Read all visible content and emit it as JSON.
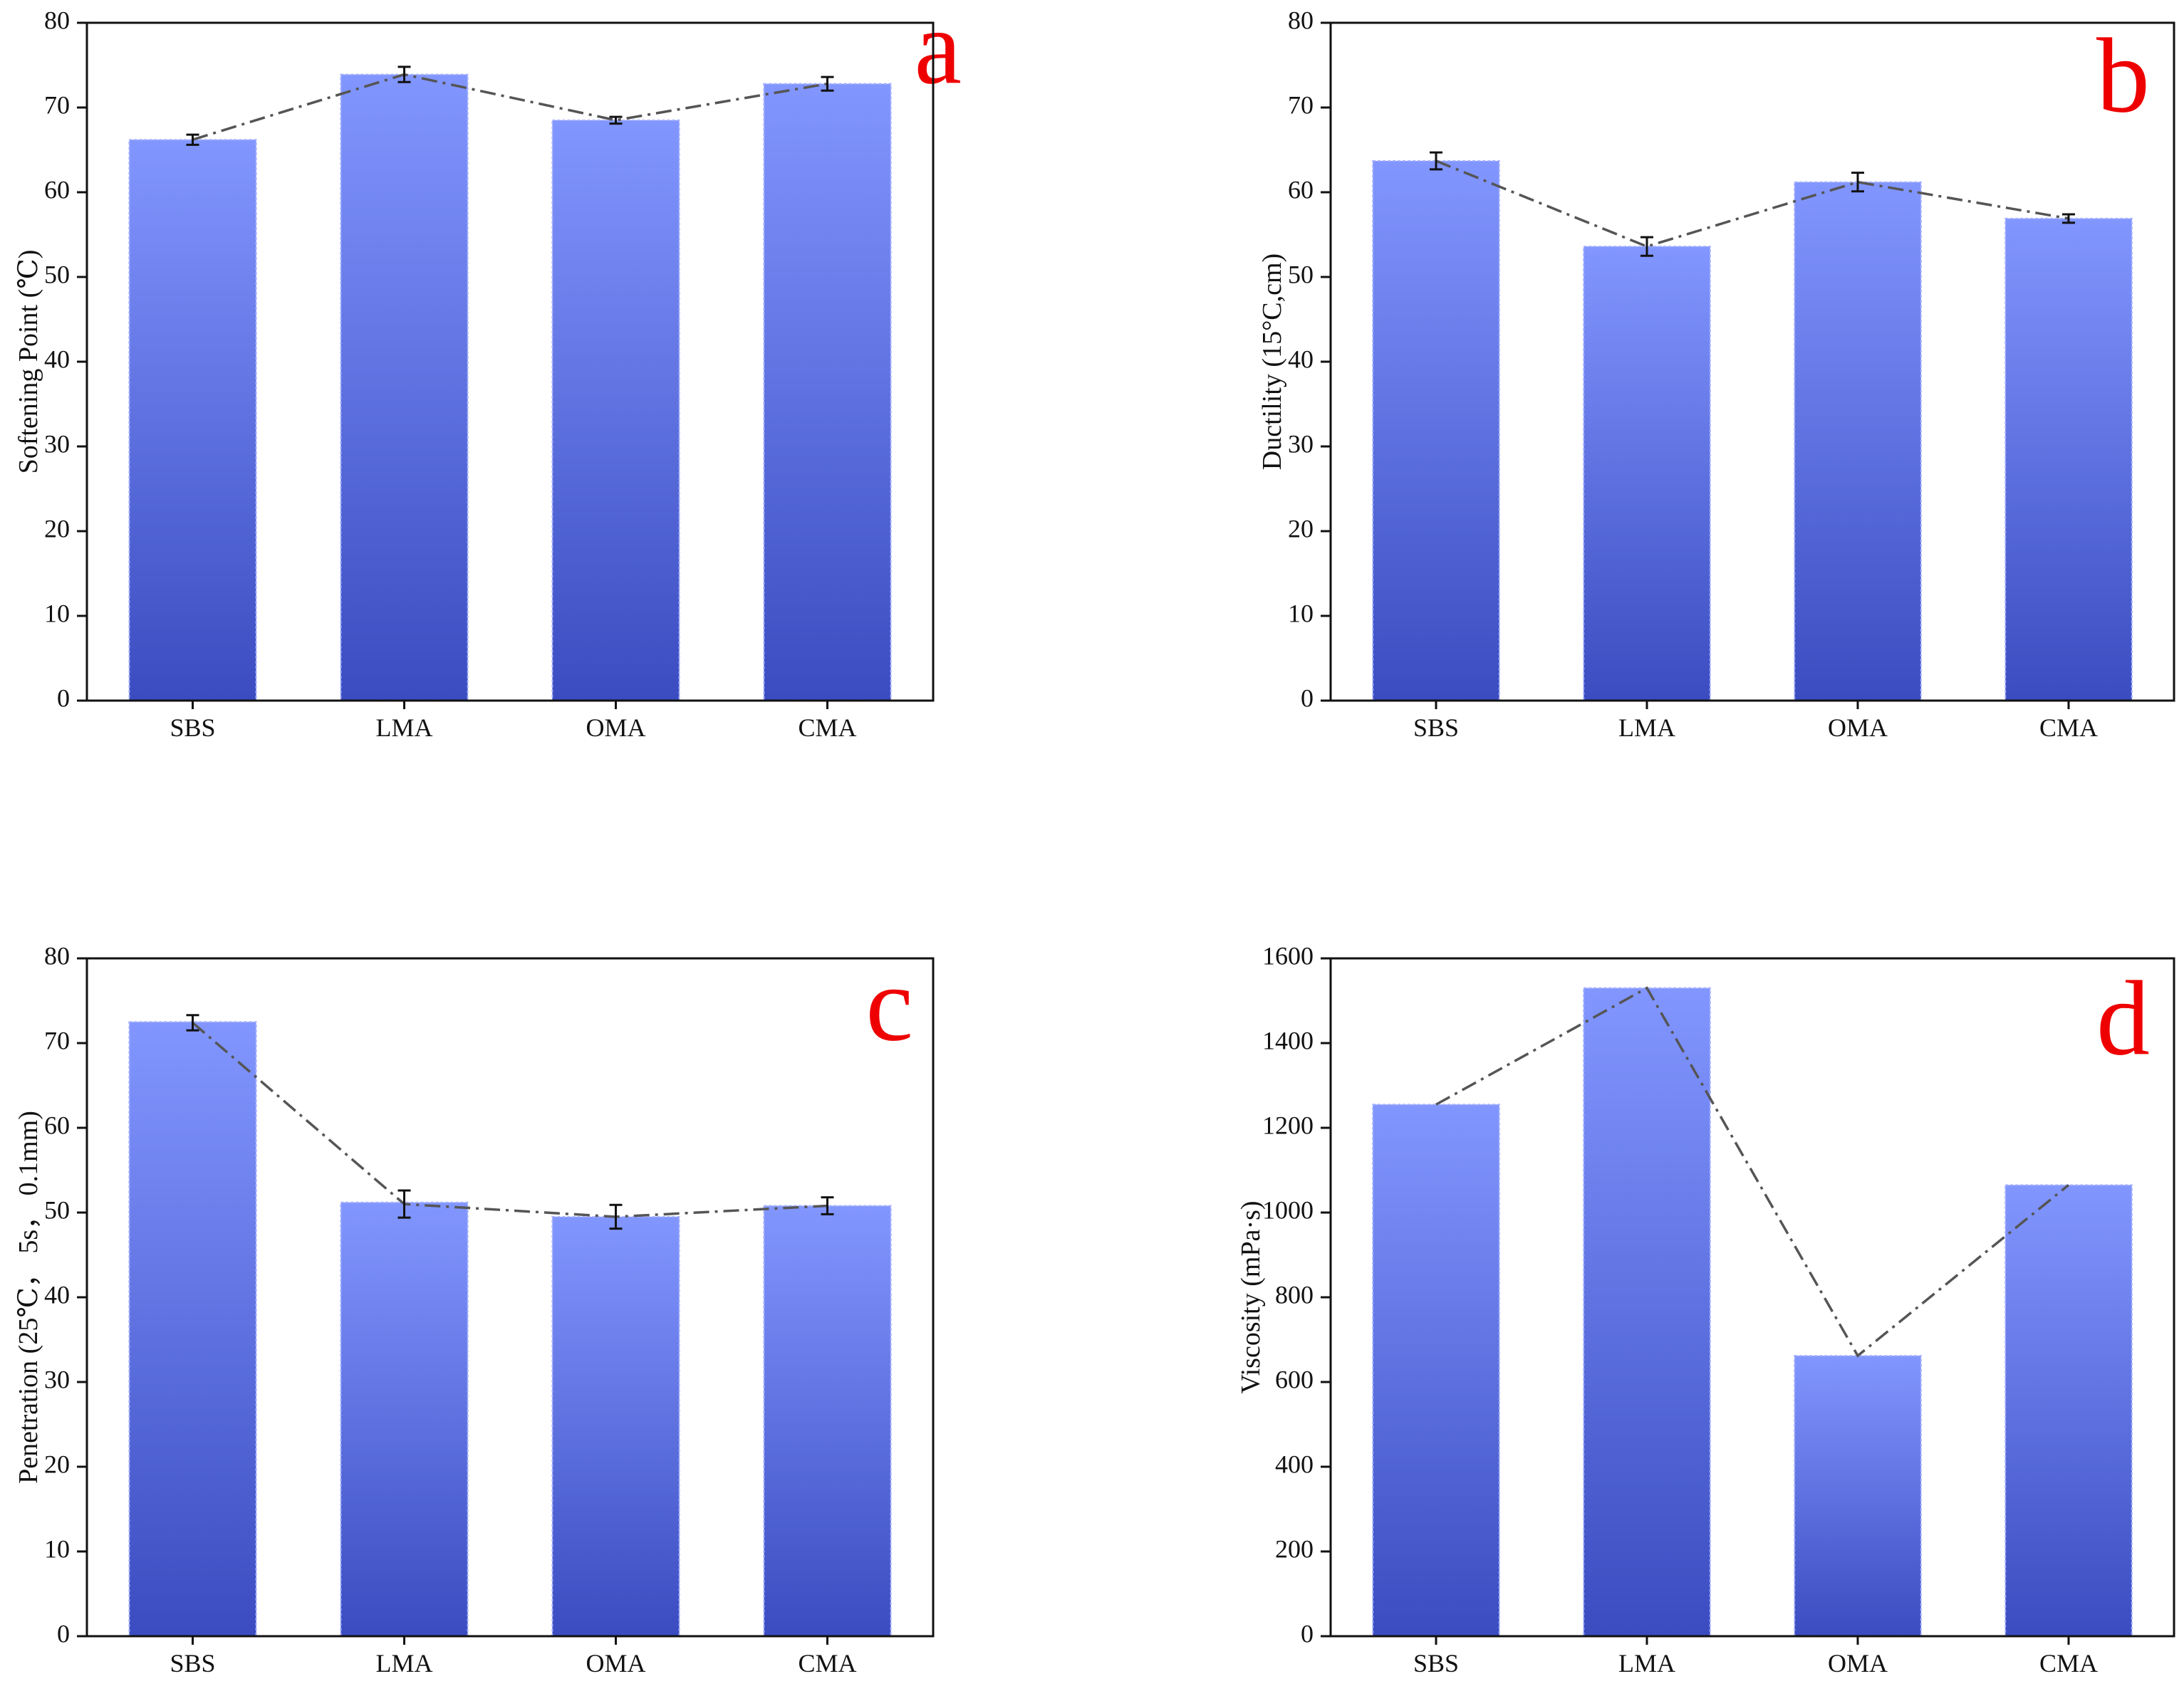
{
  "chart_data": [
    {
      "type": "bar",
      "panel_label": "a",
      "categories": [
        "SBS",
        "LMA",
        "OMA",
        "CMA"
      ],
      "values": [
        66.2,
        73.9,
        68.5,
        72.8
      ],
      "errors": [
        0.6,
        0.9,
        0.4,
        0.8
      ],
      "trend_line": [
        66.2,
        73.9,
        68.5,
        72.8
      ],
      "ylabel": "Softening Point (℃)",
      "xlabel": "",
      "ylim": [
        0,
        80
      ],
      "yticks": [
        0,
        10,
        20,
        30,
        40,
        50,
        60,
        70,
        80
      ],
      "tick_labels": [
        "0",
        "10",
        "20",
        "30",
        "40",
        "50",
        "60",
        "70",
        "80"
      ],
      "grid": false
    },
    {
      "type": "bar",
      "panel_label": "b",
      "categories": [
        "SBS",
        "LMA",
        "OMA",
        "CMA"
      ],
      "values": [
        63.7,
        53.6,
        61.2,
        56.9
      ],
      "errors": [
        1.0,
        1.1,
        1.1,
        0.5
      ],
      "trend_line": [
        63.7,
        53.6,
        61.2,
        56.9
      ],
      "ylabel": "Ductility (15°C,cm)",
      "xlabel": "",
      "ylim": [
        0,
        80
      ],
      "yticks": [
        0,
        10,
        20,
        30,
        40,
        50,
        60,
        70,
        80
      ],
      "tick_labels": [
        "0",
        "10",
        "20",
        "30",
        "40",
        "50",
        "60",
        "70",
        "80"
      ],
      "grid": false
    },
    {
      "type": "bar",
      "panel_label": "c",
      "categories": [
        "SBS",
        "LMA",
        "OMA",
        "CMA"
      ],
      "values": [
        72.5,
        51.2,
        49.5,
        50.8
      ],
      "errors": [
        0.9,
        1.6,
        1.4,
        1.0
      ],
      "trend_line": [
        72.4,
        51.0,
        49.5,
        50.8
      ],
      "ylabel": "Penetration (25℃， 5s， 0.1mm)",
      "xlabel": "",
      "ylim": [
        0,
        80
      ],
      "yticks": [
        0,
        10,
        20,
        30,
        40,
        50,
        60,
        70,
        80
      ],
      "tick_labels": [
        "0",
        "10",
        "20",
        "30",
        "40",
        "50",
        "60",
        "70",
        "80"
      ],
      "grid": false
    },
    {
      "type": "bar",
      "panel_label": "d",
      "categories": [
        "SBS",
        "LMA",
        "OMA",
        "CMA"
      ],
      "values": [
        1255,
        1530,
        662,
        1065
      ],
      "errors": [],
      "trend_line": [
        1255,
        1530,
        662,
        1065
      ],
      "ylabel": "Viscosity (mPa·s)",
      "xlabel": "",
      "ylim": [
        0,
        1600
      ],
      "yticks": [
        0,
        200,
        400,
        600,
        800,
        1000,
        1200,
        1400,
        1600
      ],
      "tick_labels": [
        "0",
        "200",
        "400",
        "600",
        "800",
        "1000",
        "1200",
        "1400",
        "1600"
      ],
      "grid": false
    }
  ],
  "colors": {
    "bar_top": "#8296ff",
    "bar_bottom": "#3a4cc0",
    "bar_edge": "#a6b2ff",
    "trend_line": "#555555",
    "error_bar": "#111111",
    "panel_letter": "#ee0000"
  }
}
